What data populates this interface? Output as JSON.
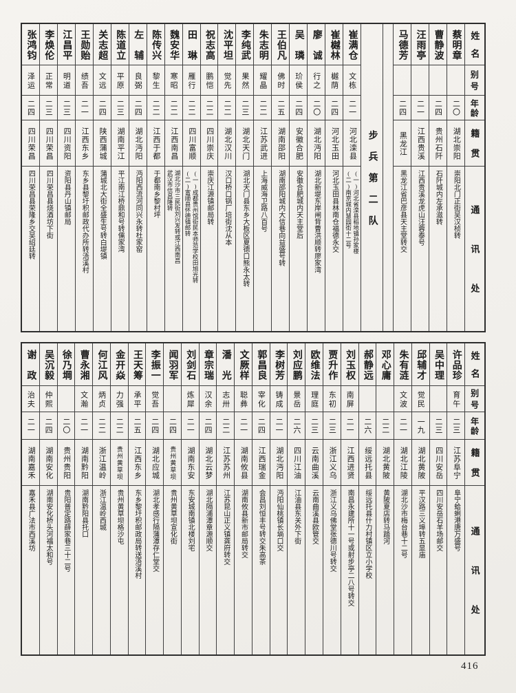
{
  "page_number": "416",
  "headers": {
    "name": "姓名",
    "alias": "别号",
    "age": "年龄",
    "origin": "籍贯",
    "address": "通讯处"
  },
  "section_divider": "步兵第二队",
  "tables": {
    "top": {
      "columns": [
        {
          "type": "person",
          "name": "张鸿钧",
          "alias": "泽运",
          "age": "二四",
          "origin": "四川荣昌",
          "address": [
            "四川荣昌县荣隆乡交吴绍廷转"
          ]
        },
        {
          "type": "person",
          "name": "李焕伦",
          "alias": "正常",
          "age": "二三",
          "origin": "四川荣昌",
          "address": [
            "四川荣昌县烧酒坊下街"
          ]
        },
        {
          "type": "person",
          "name": "江昌平",
          "alias": "明道",
          "age": "二三",
          "origin": "四川资阳",
          "address": [
            "资阳县丹山镇邮局"
          ]
        },
        {
          "type": "person",
          "name": "王勋贻",
          "alias": "绩吾",
          "age": "二一",
          "origin": "江西东乡",
          "address": [
            "东乡县黎圩积邮政代办所转浯溪村"
          ]
        },
        {
          "type": "person",
          "name": "关志超",
          "alias": "文远",
          "age": "二四",
          "origin": "陕西蒲城",
          "address": [
            "蒲城北大街全盛生号转白堤镇"
          ]
        },
        {
          "type": "person",
          "name": "陈道立",
          "alias": "平原",
          "age": "二三",
          "origin": "湖南平江",
          "address": [
            "平江南江桥鼎和号转儒家湾"
          ]
        },
        {
          "type": "person",
          "name": "左辅",
          "alias": "良弼",
          "age": "二四",
          "origin": "湖北沔阳",
          "address": [
            "沔阳西流河同兴永转杜家窑"
          ]
        },
        {
          "type": "person",
          "name": "陈传兴",
          "alias": "黎生",
          "age": "二二",
          "origin": "江西于都",
          "address": [
            "于都南乡黎村坪"
          ]
        },
        {
          "type": "person",
          "name": "魏安华",
          "alias": "寒昭",
          "age": "二二",
          "origin": "江西南昌",
          "address": [
            "湖北沙市三民街刘兴发转或江西南昌",
            "武汉市信昌隆转"
          ]
        },
        {
          "type": "person",
          "name": "田琳",
          "alias": "雁行",
          "age": "二二",
          "origin": "四川富顺",
          "address": [
            "(一)成都贵州馆街民本师范学校田旭光转",
            "(二)富顺县怀德镇邮转"
          ]
        },
        {
          "type": "person",
          "name": "祝志高",
          "alias": "鹏恺",
          "age": "二二",
          "origin": "四川崇庆",
          "address": [
            "崇庆江源镇邮局转"
          ]
        },
        {
          "type": "person",
          "name": "沈平坦",
          "alias": "觉先",
          "age": "二二",
          "origin": "湖北汉川",
          "address": [
            "汉口桥口锅厂培街沈从本"
          ]
        },
        {
          "type": "person",
          "name": "李纯武",
          "alias": "果然",
          "age": "二三",
          "origin": "湖北天门",
          "address": [
            "湖北天门县东乡大板区夏德口熊永太转"
          ]
        },
        {
          "type": "person",
          "name": "朱志明",
          "alias": "耀晶",
          "age": "二二",
          "origin": "江苏武进",
          "address": [
            "上海威海卫路八百号"
          ]
        },
        {
          "type": "person",
          "name": "王伯凡",
          "alias": "佛时",
          "age": "二五",
          "origin": "湖南邵阳",
          "address": [
            "湖南邵阳城内大信巷向益盛号转"
          ]
        },
        {
          "type": "person",
          "name": "吴璘",
          "alias": "玠侯",
          "age": "二四",
          "origin": "安徽合肥",
          "address": [
            "安徽合肥城内天主堂后"
          ]
        },
        {
          "type": "person",
          "name": "廖诚",
          "alias": "行之",
          "age": "二〇",
          "origin": "湖北沔阳",
          "address": [
            "湖北新堤东岸闸背曹洪顺转廖家湾"
          ]
        },
        {
          "type": "person",
          "name": "崔樾林",
          "alias": "樾荫",
          "age": "二四",
          "origin": "河北玉田",
          "address": [
            "河北玉田县林南仓福德永交"
          ]
        },
        {
          "type": "person",
          "name": "崔满仓",
          "alias": "文栋",
          "age": "二一",
          "origin": "河北滦县",
          "address": [
            "(一)河北省滦县稻地镇孙家楼",
            "(二)南京城内慧园街十二号"
          ]
        },
        {
          "type": "divider"
        },
        {
          "type": "spacer"
        },
        {
          "type": "person",
          "name": "马德芳",
          "alias": "",
          "age": "二四",
          "origin": "黑龙江",
          "address": [
            "黑龙江省巴彦县天主堂转交"
          ]
        },
        {
          "type": "person",
          "name": "汪雨亭",
          "alias": "",
          "age": "二一",
          "origin": "江西贵溪",
          "address": [
            "江西贵溪龙虎山汪蓉泰号"
          ]
        },
        {
          "type": "person",
          "name": "曹静波",
          "alias": "",
          "age": "二四",
          "origin": "贵州石阡",
          "address": [
            "石阡城内左承滋转"
          ]
        },
        {
          "type": "person",
          "name": "蔡明章",
          "alias": "",
          "age": "二〇",
          "origin": "湖北崇阳",
          "address": [
            "崇阳北门正街吴汉桢转"
          ]
        },
        {
          "type": "header"
        }
      ]
    },
    "bottom": {
      "columns": [
        {
          "type": "person",
          "name": "谢政",
          "alias": "治夫",
          "age": "二一",
          "origin": "湖南嘉禾",
          "address": [
            "嘉禾县广法市西溪坊"
          ]
        },
        {
          "type": "person",
          "name": "吴沉毅",
          "alias": "仲熙",
          "age": "二四",
          "origin": "湖南安化",
          "address": [
            "湖南安化桥头河福太和号"
          ]
        },
        {
          "type": "person",
          "name": "徐乃堈",
          "alias": "",
          "age": "二〇",
          "origin": "贵州贵阳",
          "address": [
            "贵阳普定路薛家巷三十二号"
          ]
        },
        {
          "type": "person",
          "name": "曹永湘",
          "alias": "文瀚",
          "age": "二一",
          "origin": "湖南黔阳",
          "address": [
            "湖南黔阳县托口"
          ]
        },
        {
          "type": "person",
          "name": "何江风",
          "alias": "炳贞",
          "age": "二二",
          "origin": "浙江温岭",
          "address": [
            "浙江温岭西城"
          ]
        },
        {
          "type": "person",
          "name": "金开焱",
          "alias": "力强",
          "age": "二二",
          "origin": "贵州黄草坝",
          "address": [
            "贵州黄草坝格沙屯"
          ]
        },
        {
          "type": "person",
          "name": "王天筹",
          "alias": "承平",
          "age": "二五",
          "origin": "江西东乡",
          "address": [
            "东乡黎圩积邮政局转送浯溪村"
          ]
        },
        {
          "type": "person",
          "name": "李振一",
          "alias": "觉吾",
          "age": "二四",
          "origin": "湖北应城",
          "address": [
            "湖北孝感行隔蒲潭存仁堂交"
          ]
        },
        {
          "type": "person",
          "name": "闻羽军",
          "alias": "",
          "age": "二四",
          "origin": "贵州黄草坝",
          "address": [
            "贵州黄草坝宣化街"
          ]
        },
        {
          "type": "person",
          "name": "刘剑石",
          "alias": "炼犀",
          "age": "二一",
          "origin": "湖南东安",
          "address": [
            "东安城南镇北楼刘宅"
          ]
        },
        {
          "type": "person",
          "name": "章宗瑞",
          "alias": "汉余",
          "age": "二四",
          "origin": "湖北云梦",
          "address": [
            "湖北隔浦潭章源顺交"
          ]
        },
        {
          "type": "person",
          "name": "潘光",
          "alias": "志卅",
          "age": "二二",
          "origin": "江苏苏州",
          "address": [
            "江苏昆山正义镇龚府转交"
          ]
        },
        {
          "type": "person",
          "name": "文厥样",
          "alias": "聪彝",
          "age": "二一",
          "origin": "湖南攸县",
          "address": [
            "湖南攸县新市邮局转交"
          ]
        },
        {
          "type": "person",
          "name": "郭昌良",
          "alias": "宰化",
          "age": "二四",
          "origin": "江西瑞金",
          "address": [
            "会昌刘恒丰号转交朱高茶"
          ]
        },
        {
          "type": "person",
          "name": "李树芳",
          "alias": "铸成",
          "age": "二一",
          "origin": "湖北沔阳",
          "address": [
            "沔阳仙桃镇长埫口交"
          ]
        },
        {
          "type": "person",
          "name": "刘应鹏",
          "alias": "景岳",
          "age": "二六",
          "origin": "四川江油",
          "address": [
            "江油县东关外下街"
          ]
        },
        {
          "type": "person",
          "name": "欧维法",
          "alias": "理庭",
          "age": "二三",
          "origin": "云南曲溪",
          "address": [
            "云南曲溪县欧管交"
          ]
        },
        {
          "type": "person",
          "name": "贾升作",
          "alias": "东初",
          "age": "二三",
          "origin": "浙江义乌",
          "address": [
            "浙江义乌佛堂张德川号转交"
          ]
        },
        {
          "type": "person",
          "name": "刘玉权",
          "alias": "南屏",
          "age": "二一",
          "origin": "江西进贤",
          "address": [
            "南昌永建所十一号或射步亭二八号转交"
          ]
        },
        {
          "type": "person",
          "name": "郝静远",
          "alias": "",
          "age": "二六",
          "origin": "绥远托县",
          "address": [
            "绥远托县什力村镇区立小学校"
          ]
        },
        {
          "type": "person",
          "name": "邓心庸",
          "alias": "",
          "age": "二二",
          "origin": "湖北黄陂",
          "address": [
            "黄陂夏店转马踏河"
          ]
        },
        {
          "type": "person",
          "name": "朱有涟",
          "alias": "文波",
          "age": "二一",
          "origin": "湖北江陵",
          "address": [
            "湖北沙市梅台巷十二号"
          ]
        },
        {
          "type": "person",
          "name": "邱辅才",
          "alias": "觉民",
          "age": "一九",
          "origin": "湖北黄陂",
          "address": [
            "平汉路三义埠转五显庙"
          ]
        },
        {
          "type": "person",
          "name": "吴中理",
          "alias": "",
          "age": "二三",
          "origin": "四川安岳",
          "address": [
            "四川安岳石羊场邮交"
          ]
        },
        {
          "type": "person",
          "name": "许品珍",
          "alias": "育午",
          "age": "二三",
          "origin": "江苏阜宁",
          "address": [
            "阜宁蛤蜊港唐万盛号"
          ]
        },
        {
          "type": "header"
        }
      ]
    }
  }
}
